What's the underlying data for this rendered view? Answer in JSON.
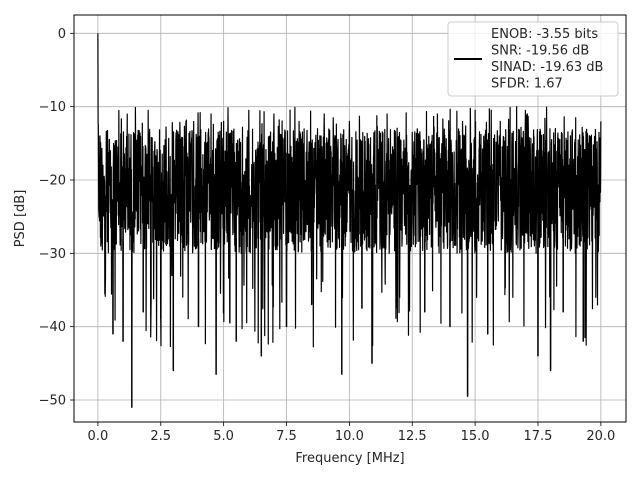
{
  "chart_data": {
    "type": "line",
    "title": "",
    "xlabel": "Frequency [MHz]",
    "ylabel": "PSD [dB]",
    "xlim": [
      -0.95,
      21.0
    ],
    "ylim": [
      -53.0,
      2.5
    ],
    "xticks": [
      0.0,
      2.5,
      5.0,
      7.5,
      10.0,
      12.5,
      15.0,
      17.5,
      20.0
    ],
    "xtick_labels": [
      "0.0",
      "2.5",
      "5.0",
      "7.5",
      "10.0",
      "12.5",
      "15.0",
      "17.5",
      "20.0"
    ],
    "yticks": [
      0,
      -10,
      -20,
      -30,
      -40,
      -50
    ],
    "ytick_labels": [
      "0",
      "−10",
      "−20",
      "−30",
      "−40",
      "−50"
    ],
    "grid": true,
    "legend": {
      "placement": "top-right",
      "lines": [
        "ENOB: -3.55 bits",
        "SNR: -19.56 dB",
        "SINAD: -19.63 dB",
        "SFDR: 1.67"
      ]
    },
    "series": [
      {
        "color": "#000000",
        "peak": {
          "x": 0.0,
          "y": 0.0
        },
        "x_range": [
          0.0,
          20.0
        ],
        "points": [
          [
            0.0,
            0.0
          ],
          [
            0.02,
            -12.5
          ],
          [
            0.05,
            -25.0
          ],
          [
            0.08,
            -14.0
          ],
          [
            0.12,
            -29.0
          ],
          [
            0.2,
            -18.0
          ],
          [
            0.3,
            -33.5
          ],
          [
            0.5,
            -16.0
          ],
          [
            0.6,
            -41.0
          ],
          [
            0.8,
            -15.5
          ],
          [
            1.0,
            -42.0
          ],
          [
            1.3,
            -17.0
          ],
          [
            1.35,
            -51.0
          ],
          [
            1.5,
            -14.5
          ],
          [
            1.8,
            -38.0
          ],
          [
            2.0,
            -10.5
          ],
          [
            2.5,
            -39.0
          ],
          [
            3.0,
            -13.0
          ],
          [
            3.0,
            -46.0
          ],
          [
            3.5,
            -12.0
          ],
          [
            4.0,
            -40.0
          ],
          [
            4.5,
            -11.0
          ],
          [
            4.7,
            -46.5
          ],
          [
            5.0,
            -12.0
          ],
          [
            5.5,
            -42.0
          ],
          [
            6.0,
            -10.5
          ],
          [
            6.5,
            -44.0
          ],
          [
            7.0,
            -11.0
          ],
          [
            7.5,
            -40.0
          ],
          [
            8.0,
            -12.0
          ],
          [
            8.5,
            -37.0
          ],
          [
            9.0,
            -11.0
          ],
          [
            9.7,
            -46.5
          ],
          [
            10.0,
            -12.0
          ],
          [
            10.5,
            -37.5
          ],
          [
            10.9,
            -45.0
          ],
          [
            11.5,
            -11.0
          ],
          [
            12.0,
            -36.0
          ],
          [
            12.5,
            -13.5
          ],
          [
            13.0,
            -38.0
          ],
          [
            13.5,
            -11.0
          ],
          [
            14.0,
            -40.0
          ],
          [
            14.5,
            -12.0
          ],
          [
            14.7,
            -49.5
          ],
          [
            15.0,
            -10.5
          ],
          [
            15.5,
            -41.0
          ],
          [
            16.0,
            -12.0
          ],
          [
            16.5,
            -36.0
          ],
          [
            17.0,
            -10.5
          ],
          [
            17.5,
            -44.0
          ],
          [
            18.0,
            -12.0
          ],
          [
            18.0,
            -46.0
          ],
          [
            18.5,
            -38.0
          ],
          [
            19.0,
            -11.5
          ],
          [
            19.3,
            -42.0
          ],
          [
            19.5,
            -15.0
          ],
          [
            19.8,
            -36.0
          ],
          [
            20.0,
            -12.0
          ]
        ],
        "band_top": -13.0,
        "band_bottom": -30.0,
        "max_spike": -9.5,
        "min_spike": -51.0
      }
    ]
  }
}
